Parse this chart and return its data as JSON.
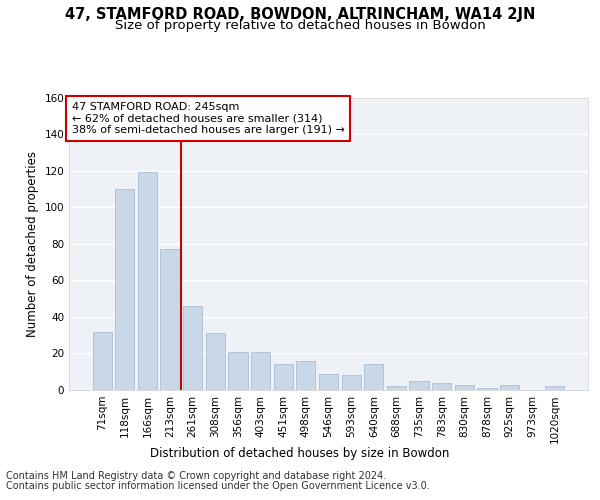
{
  "title": "47, STAMFORD ROAD, BOWDON, ALTRINCHAM, WA14 2JN",
  "subtitle": "Size of property relative to detached houses in Bowdon",
  "xlabel": "Distribution of detached houses by size in Bowdon",
  "ylabel": "Number of detached properties",
  "bar_color": "#c8d8e8",
  "bar_edge_color": "#a0b8cc",
  "background_color": "#eef2f7",
  "grid_color": "#ffffff",
  "annotation_line_color": "#cc0000",
  "annotation_box_color": "#cc0000",
  "annotation_line1": "47 STAMFORD ROAD: 245sqm",
  "annotation_line2": "← 62% of detached houses are smaller (314)",
  "annotation_line3": "38% of semi-detached houses are larger (191) →",
  "property_size": 245,
  "categories": [
    "71sqm",
    "118sqm",
    "166sqm",
    "213sqm",
    "261sqm",
    "308sqm",
    "356sqm",
    "403sqm",
    "451sqm",
    "498sqm",
    "546sqm",
    "593sqm",
    "640sqm",
    "688sqm",
    "735sqm",
    "783sqm",
    "830sqm",
    "878sqm",
    "925sqm",
    "973sqm",
    "1020sqm"
  ],
  "values": [
    32,
    110,
    119,
    77,
    46,
    31,
    21,
    21,
    14,
    16,
    9,
    8,
    14,
    2,
    5,
    4,
    3,
    1,
    3,
    0,
    2
  ],
  "property_line_index": 4,
  "ylim": [
    0,
    160
  ],
  "yticks": [
    0,
    20,
    40,
    60,
    80,
    100,
    120,
    140,
    160
  ],
  "footer_line1": "Contains HM Land Registry data © Crown copyright and database right 2024.",
  "footer_line2": "Contains public sector information licensed under the Open Government Licence v3.0.",
  "title_fontsize": 10.5,
  "subtitle_fontsize": 9.5,
  "axis_label_fontsize": 8.5,
  "tick_fontsize": 7.5,
  "annotation_fontsize": 8,
  "footer_fontsize": 7
}
